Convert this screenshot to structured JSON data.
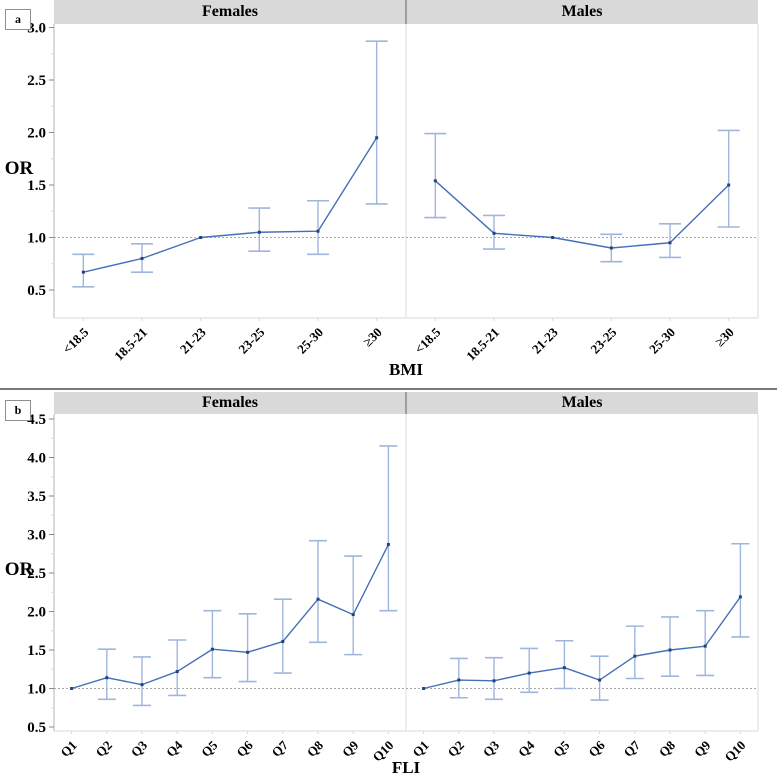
{
  "colors": {
    "line": "#4470b8",
    "error_bar": "#9fb6dc",
    "marker": "#24427c",
    "header_bg": "#d9d9d9",
    "header_divider": "#9e9e9e",
    "axis": "#b5b5b5",
    "plot_border": "#d8d8d8",
    "panel_divider": "#e9e9e9",
    "reference_line": "#8c8c8c",
    "tick": "#8a8a8a",
    "minor_tick": "#d8d8d8"
  },
  "chart_data": [
    {
      "panel_label": "a",
      "type": "line",
      "subtype": "odds-ratio with 95% CI error bars",
      "title_groups": [
        "Females",
        "Males"
      ],
      "ylabel": "OR",
      "xlabel": "BMI",
      "categories": [
        "<18.5",
        "18.5-21",
        "21-23",
        "23-25",
        "25-30",
        "≥30"
      ],
      "yticks": [
        "0.5",
        "1.0",
        "1.5",
        "2.0",
        "2.5",
        "3.0"
      ],
      "ylim": [
        0.23,
        3.03
      ],
      "reference_line": 1.0,
      "grid": false,
      "legend_position": "none",
      "series": [
        {
          "name": "Females",
          "or": [
            0.67,
            0.8,
            1.0,
            1.05,
            1.06,
            1.95
          ],
          "ci_low": [
            0.53,
            0.67,
            null,
            0.87,
            0.84,
            1.32
          ],
          "ci_high": [
            0.84,
            0.94,
            null,
            1.28,
            1.35,
            2.87
          ]
        },
        {
          "name": "Males",
          "or": [
            1.54,
            1.04,
            1.0,
            0.9,
            0.95,
            1.5
          ],
          "ci_low": [
            1.19,
            0.89,
            null,
            0.77,
            0.81,
            1.1
          ],
          "ci_high": [
            1.99,
            1.21,
            null,
            1.03,
            1.13,
            2.02
          ]
        }
      ]
    },
    {
      "panel_label": "b",
      "type": "line",
      "subtype": "odds-ratio with 95% CI error bars",
      "title_groups": [
        "Females",
        "Males"
      ],
      "ylabel": "OR",
      "xlabel": "FLI",
      "categories": [
        "Q1",
        "Q2",
        "Q3",
        "Q4",
        "Q5",
        "Q6",
        "Q7",
        "Q8",
        "Q9",
        "Q10"
      ],
      "yticks": [
        "0.5",
        "1.0",
        "1.5",
        "2.0",
        "2.5",
        "3.0",
        "3.5",
        "4.0",
        "4.5"
      ],
      "ylim": [
        0.45,
        4.56
      ],
      "reference_line": 1.0,
      "grid": false,
      "legend_position": "none",
      "series": [
        {
          "name": "Females",
          "or": [
            1.0,
            1.14,
            1.05,
            1.22,
            1.51,
            1.47,
            1.61,
            2.16,
            1.96,
            2.87
          ],
          "ci_low": [
            null,
            0.86,
            0.78,
            0.91,
            1.14,
            1.09,
            1.2,
            1.6,
            1.44,
            2.01
          ],
          "ci_high": [
            null,
            1.51,
            1.41,
            1.63,
            2.01,
            1.97,
            2.16,
            2.92,
            2.72,
            4.15
          ]
        },
        {
          "name": "Males",
          "or": [
            1.0,
            1.11,
            1.1,
            1.2,
            1.27,
            1.11,
            1.42,
            1.5,
            1.55,
            2.19
          ],
          "ci_low": [
            null,
            0.88,
            0.86,
            0.95,
            1.0,
            0.85,
            1.13,
            1.16,
            1.17,
            1.67
          ],
          "ci_high": [
            null,
            1.39,
            1.4,
            1.52,
            1.62,
            1.42,
            1.81,
            1.93,
            2.01,
            2.88
          ]
        }
      ]
    }
  ]
}
